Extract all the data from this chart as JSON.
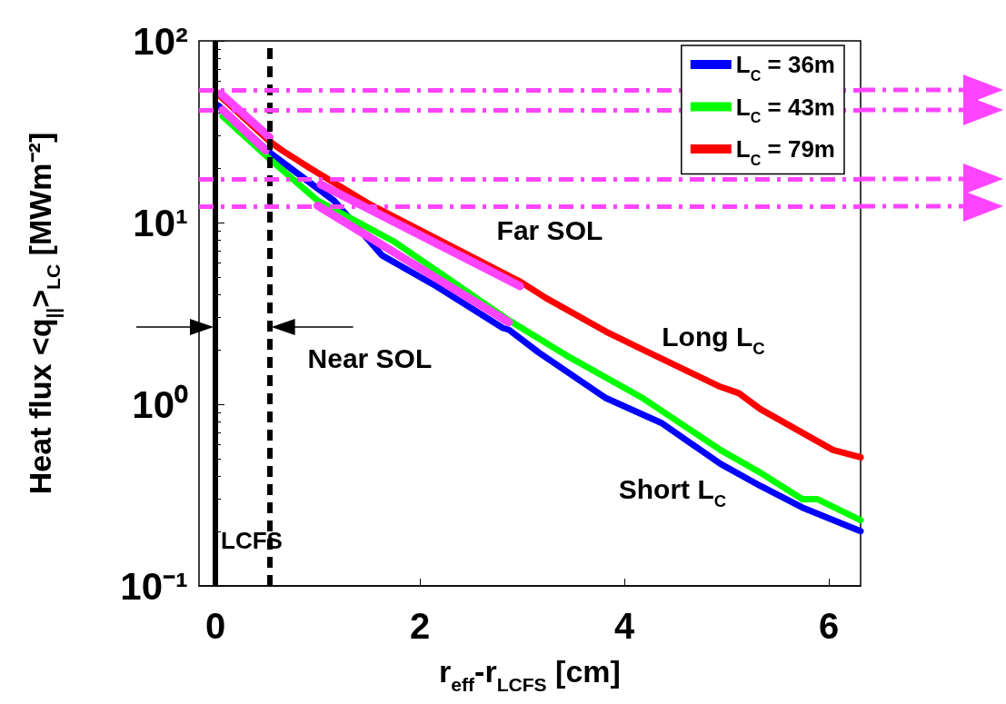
{
  "chart_data": {
    "type": "line",
    "xlabel": "r$_{eff}$-r$_{LCFS}$ [cm]",
    "ylabel": "Heat flux <q$_{||}$>$_{LC}$ [MWm⁻²]",
    "xlim": [
      -0.16,
      6.31
    ],
    "xticks": [
      0,
      2,
      4,
      6
    ],
    "ylim": [
      0.1,
      100
    ],
    "log": "y",
    "yticks": [
      {
        "value": 0.1,
        "label": "10⁻¹"
      },
      {
        "value": 1,
        "label": "10⁰"
      },
      {
        "value": 10,
        "label": "10¹"
      },
      {
        "value": 100,
        "label": "10²"
      }
    ],
    "grid": false,
    "legend": "top right",
    "line_style": "solid",
    "marker": "none",
    "series": [
      {
        "name": "L$_{C}$ = 36m",
        "color": "#0000ff",
        "x": [
          0.03,
          0.53,
          1.16,
          1.63,
          2.16,
          2.81,
          2.87,
          3.16,
          3.82,
          4.36,
          4.94,
          5.33,
          5.74,
          6.31
        ],
        "values": [
          44,
          24.3,
          13.2,
          6.6,
          4.47,
          2.63,
          2.57,
          1.93,
          1.08,
          0.79,
          0.47,
          0.355,
          0.27,
          0.2
        ]
      },
      {
        "name": "L$_{C}$ = 43m",
        "color": "#00ff00",
        "x": [
          0.07,
          0.53,
          1.0,
          1.74,
          2.87,
          3.43,
          4.18,
          4.94,
          5.33,
          5.74,
          5.89,
          6.31
        ],
        "values": [
          38.5,
          22.4,
          13.2,
          7.9,
          2.9,
          1.86,
          1.08,
          0.56,
          0.42,
          0.3,
          0.3,
          0.23
        ]
      },
      {
        "name": "L$_{C}$ = 79m",
        "color": "#ff0000",
        "x": [
          0.05,
          0.53,
          0.65,
          0.92,
          1.07,
          1.51,
          2.99,
          3.23,
          3.82,
          4.18,
          4.92,
          5.12,
          5.33,
          6.04,
          6.31
        ],
        "values": [
          49.5,
          28,
          25,
          20,
          17.8,
          12.6,
          4.7,
          3.85,
          2.51,
          2.0,
          1.26,
          1.15,
          0.94,
          0.56,
          0.51
        ]
      },
      {
        "color": "#ff44ff",
        "x": [
          0.05,
          0.53
        ],
        "values": [
          51.3,
          29.5
        ]
      },
      {
        "color": "#ff44ff",
        "x": [
          0.07,
          0.49
        ],
        "values": [
          41.7,
          25
        ]
      },
      {
        "color": "#ff44ff",
        "x": [
          1.03,
          2.98
        ],
        "values": [
          16.2,
          4.47
        ]
      },
      {
        "color": "#ff44ff",
        "x": [
          1.0,
          2.87
        ],
        "values": [
          12.4,
          2.82
        ]
      }
    ],
    "ref_lines": [
      {
        "axis": "x",
        "value": 0,
        "label": "LCFS",
        "color": "#000000",
        "line_style": "solid"
      },
      {
        "axis": "x",
        "value": 0.53,
        "color": "#000000",
        "line_style": "dashed"
      },
      {
        "axis": "y",
        "value": 53.7,
        "color": "#ff44ff"
      },
      {
        "axis": "y",
        "value": 41.7,
        "color": "#ff44ff"
      },
      {
        "axis": "y",
        "value": 17.4,
        "color": "#ff44ff"
      },
      {
        "axis": "y",
        "value": 12.3,
        "color": "#ff44ff"
      }
    ],
    "annotations": [
      "Far SOL",
      "Near SOL",
      "Long L$_{C}$",
      "Short L$_{C}$"
    ]
  }
}
